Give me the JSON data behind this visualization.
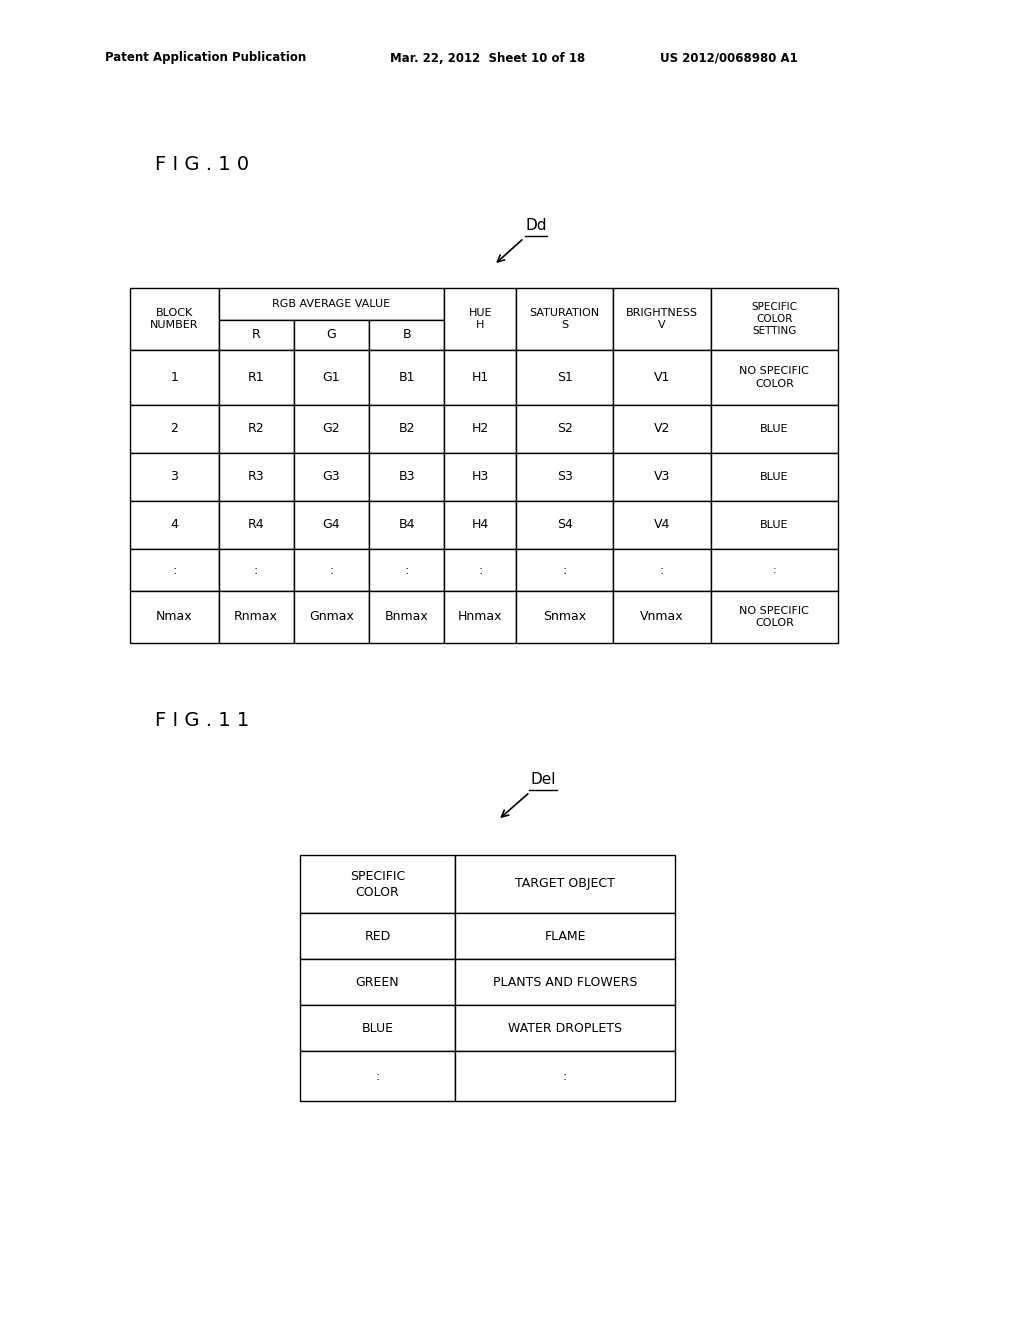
{
  "header_left": "Patent Application Publication",
  "header_mid": "Mar. 22, 2012  Sheet 10 of 18",
  "header_right": "US 2012/0068980 A1",
  "fig10_label": "F I G . 1 0",
  "fig11_label": "F I G . 1 1",
  "dd_label": "Dd",
  "del_label": "Del",
  "table1": {
    "rows": [
      [
        "1",
        "R1",
        "G1",
        "B1",
        "H1",
        "S1",
        "V1",
        "NO SPECIFIC\nCOLOR"
      ],
      [
        "2",
        "R2",
        "G2",
        "B2",
        "H2",
        "S2",
        "V2",
        "BLUE"
      ],
      [
        "3",
        "R3",
        "G3",
        "B3",
        "H3",
        "S3",
        "V3",
        "BLUE"
      ],
      [
        "4",
        "R4",
        "G4",
        "B4",
        "H4",
        "S4",
        "V4",
        "BLUE"
      ],
      [
        ":",
        ":",
        ":",
        ":",
        ":",
        ":",
        ":",
        ":"
      ],
      [
        "Nmax",
        "Rnmax",
        "Gnmax",
        "Bnmax",
        "Hnmax",
        "Snmax",
        "Vnmax",
        "NO SPECIFIC\nCOLOR"
      ]
    ]
  },
  "table2": {
    "rows": [
      [
        "SPECIFIC\nCOLOR",
        "TARGET OBJECT"
      ],
      [
        "RED",
        "FLAME"
      ],
      [
        "GREEN",
        "PLANTS AND FLOWERS"
      ],
      [
        "BLUE",
        "WATER DROPLETS"
      ],
      [
        ":",
        ":"
      ]
    ]
  },
  "bg_color": "#ffffff",
  "text_color": "#000000"
}
